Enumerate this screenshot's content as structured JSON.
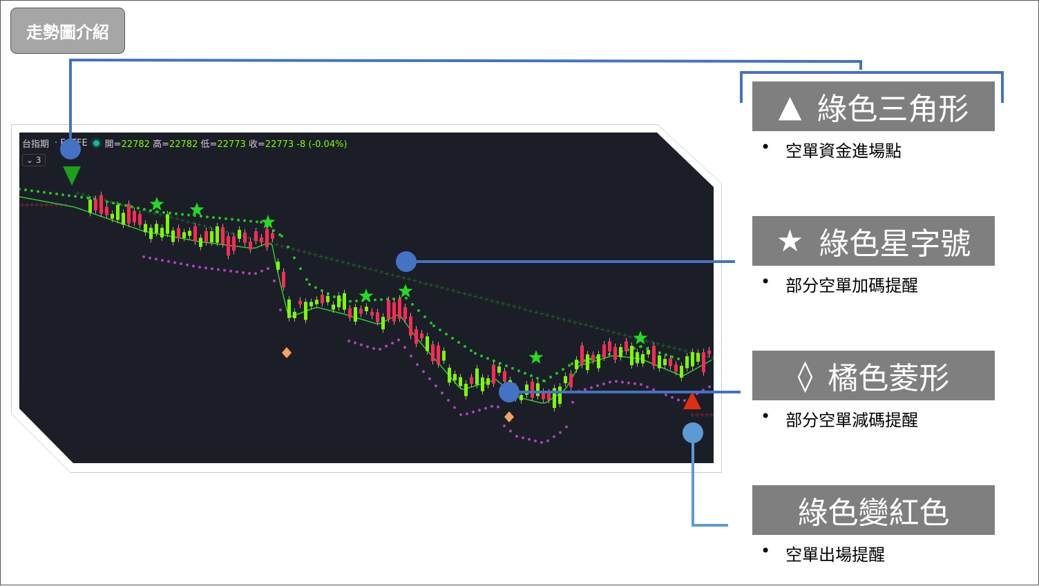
{
  "slide": {
    "title": "走勢圖介紹"
  },
  "chart_header": {
    "symbol": "台指期",
    "code_left": "F",
    "code_right": "TFE",
    "open_label": "開=",
    "open": "22782",
    "high_label": "高=",
    "high": "22782",
    "low_label": "低=",
    "low": "22773",
    "close_label": "收=",
    "close": "22773",
    "change": "-8 (-0.04%)",
    "collapse": "⌄ 3"
  },
  "legend": [
    {
      "icon": "▲",
      "title": "綠色三角形",
      "desc": "空單資金進場點"
    },
    {
      "icon": "★",
      "title": "綠色星字號",
      "desc": "部分空單加碼提醒"
    },
    {
      "icon": "◊",
      "title": "橘色菱形",
      "desc": "部分空單減碼提醒"
    },
    {
      "icon": "",
      "title": "綠色變紅色",
      "desc": "空單出場提醒"
    }
  ],
  "bullet": "•",
  "colors": {
    "connector": "#4472c4",
    "connector_light": "#5b9bd5",
    "label_bg": "#7f7f7f",
    "up": "#ff2a55",
    "down": "#7cfc00",
    "chart_bg": "#1b1e27"
  }
}
